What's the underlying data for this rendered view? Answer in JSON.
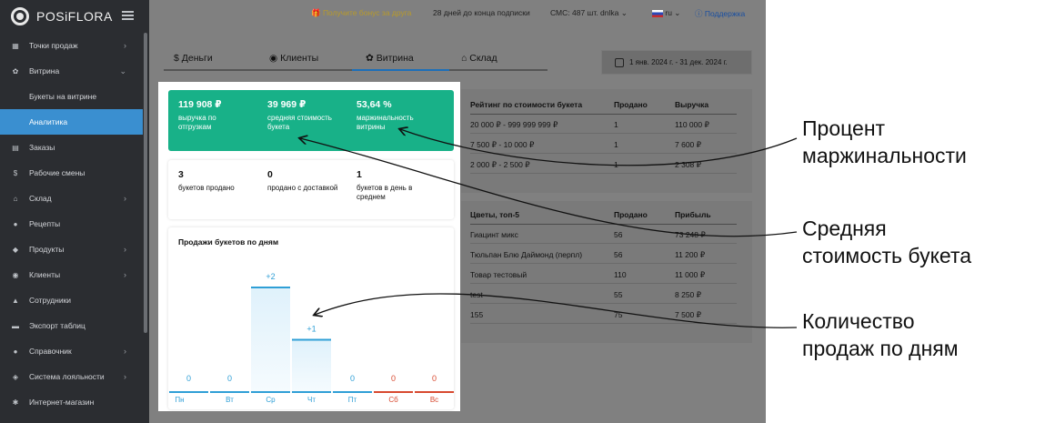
{
  "app": {
    "brand": "POSiFLORA"
  },
  "sidebar": {
    "items": [
      {
        "label": "Точки продаж",
        "icon": "store-icon",
        "glyph": "▦",
        "chevron": "›"
      },
      {
        "label": "Витрина",
        "icon": "bouquet-icon",
        "glyph": "✿",
        "chevron": "⌄"
      },
      {
        "label": "Букеты на витрине",
        "sub": true
      },
      {
        "label": "Аналитика",
        "sub": true,
        "active": true
      },
      {
        "label": "Заказы",
        "icon": "orders-icon",
        "glyph": "▤"
      },
      {
        "label": "Рабочие смены",
        "icon": "dollar-icon",
        "glyph": "$"
      },
      {
        "label": "Склад",
        "icon": "warehouse-icon",
        "glyph": "⌂",
        "chevron": "›"
      },
      {
        "label": "Рецепты",
        "icon": "recipe-icon",
        "glyph": "●"
      },
      {
        "label": "Продукты",
        "icon": "products-icon",
        "glyph": "◆",
        "chevron": "›"
      },
      {
        "label": "Клиенты",
        "icon": "clients-icon",
        "glyph": "◉",
        "chevron": "›"
      },
      {
        "label": "Сотрудники",
        "icon": "employees-icon",
        "glyph": "▲"
      },
      {
        "label": "Экспорт таблиц",
        "icon": "export-icon",
        "glyph": "▬"
      },
      {
        "label": "Справочник",
        "icon": "reference-icon",
        "glyph": "●",
        "chevron": "›"
      },
      {
        "label": "Система лояльности",
        "icon": "loyalty-icon",
        "glyph": "◈",
        "chevron": "›"
      },
      {
        "label": "Интернет-магазин",
        "icon": "shop-icon",
        "glyph": "✱"
      }
    ]
  },
  "topbar": {
    "bonus": "🎁 Получите бонус за друга",
    "subscription": "28 дней до конца подписки",
    "sms": "СМС: 487 шт.  dnlka  ⌄",
    "lang": "ru ⌄",
    "support": "ⓘ Поддержка"
  },
  "tabs": [
    {
      "label": "Деньги",
      "glyph": "$"
    },
    {
      "label": "Клиенты",
      "glyph": "◉"
    },
    {
      "label": "Витрина",
      "glyph": "✿",
      "active": true
    },
    {
      "label": "Склад",
      "glyph": "⌂"
    }
  ],
  "date_range": "1 янв. 2024 г. - 31 дек. 2024 г.",
  "kpi_green": [
    {
      "value": "119 908 ₽",
      "label": "выручка по отгрузкам"
    },
    {
      "value": "39 969 ₽",
      "label": "средняя стоимость букета"
    },
    {
      "value": "53,64  %",
      "label": "маржинальность витрины"
    }
  ],
  "kpi_white": [
    {
      "value": "3",
      "label": "букетов продано"
    },
    {
      "value": "0",
      "label": "продано с доставкой"
    },
    {
      "value": "1",
      "label": "букетов в день в среднем"
    }
  ],
  "chart_title": "Продажи букетов по дням",
  "chart_data": {
    "type": "bar",
    "title": "Продажи букетов по дням",
    "categories": [
      "Пн",
      "Вт",
      "Ср",
      "Чт",
      "Пт",
      "Сб",
      "Вс"
    ],
    "values": [
      0,
      0,
      2,
      1,
      0,
      0,
      0
    ],
    "data_labels": [
      "0",
      "0",
      "+2",
      "+1",
      "0",
      "0",
      "0"
    ],
    "weekend_color": "#d8492f",
    "weekday_color": "#2f9fd6",
    "ylim": [
      0,
      2
    ]
  },
  "table1": {
    "headers": [
      "Рейтинг по стоимости букета",
      "Продано",
      "Выручка"
    ],
    "rows": [
      [
        "20 000 ₽ - 999 999 999 ₽",
        "1",
        "110 000 ₽"
      ],
      [
        "7 500 ₽ - 10 000 ₽",
        "1",
        "7 600 ₽"
      ],
      [
        "2 000 ₽ - 2 500 ₽",
        "1",
        "2 308 ₽"
      ]
    ]
  },
  "table2": {
    "headers": [
      "Цветы, топ-5",
      "Продано",
      "Прибыль"
    ],
    "rows": [
      [
        "Гиацинт микс",
        "56",
        "73 248 ₽"
      ],
      [
        "Тюльпан Блю Даймонд (перпл)",
        "56",
        "11 200 ₽"
      ],
      [
        "Товар тестовый",
        "110",
        "11 000 ₽"
      ],
      [
        "test",
        "55",
        "8 250 ₽"
      ],
      [
        "155",
        "75",
        "7 500 ₽"
      ]
    ]
  },
  "callouts": [
    {
      "line1": "Процент",
      "line2": "маржинальности"
    },
    {
      "line1": "Средняя",
      "line2": "стоимость букета"
    },
    {
      "line1": "Количество",
      "line2": "продаж по дням"
    }
  ]
}
